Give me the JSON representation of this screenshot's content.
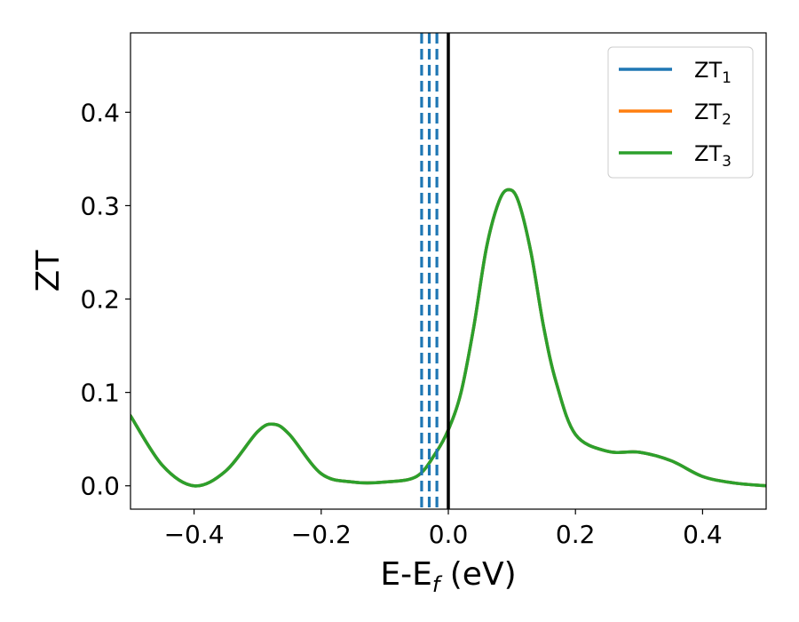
{
  "chart_data": {
    "type": "line",
    "xlabel": "E-E",
    "xlabel_sub": "f",
    "xlabel_unit": " (eV)",
    "ylabel": "ZT",
    "xlim": [
      -0.5,
      0.5
    ],
    "ylim": [
      -0.025,
      0.485
    ],
    "x_ticks": [
      -0.4,
      -0.2,
      0.0,
      0.2,
      0.4
    ],
    "x_tick_labels": [
      "−0.4",
      "−0.2",
      "0.0",
      "0.2",
      "0.4"
    ],
    "y_ticks": [
      0.0,
      0.1,
      0.2,
      0.3,
      0.4
    ],
    "y_tick_labels": [
      "0.0",
      "0.1",
      "0.2",
      "0.3",
      "0.4"
    ],
    "grid": false,
    "legend_position": "top-right",
    "series": [
      {
        "name": "ZT",
        "sub": "1",
        "color": "#1f77b4",
        "x": [
          -0.5,
          -0.45,
          -0.4,
          -0.35,
          -0.3,
          -0.275,
          -0.25,
          -0.2,
          -0.15,
          -0.1,
          -0.05,
          -0.02,
          0.0,
          0.02,
          0.04,
          0.06,
          0.08,
          0.095,
          0.11,
          0.13,
          0.15,
          0.17,
          0.2,
          0.25,
          0.3,
          0.35,
          0.4,
          0.45,
          0.5
        ],
        "y": [
          0.075,
          0.022,
          0.0,
          0.016,
          0.058,
          0.066,
          0.055,
          0.013,
          0.004,
          0.004,
          0.01,
          0.035,
          0.06,
          0.1,
          0.17,
          0.255,
          0.305,
          0.317,
          0.305,
          0.25,
          0.17,
          0.11,
          0.055,
          0.037,
          0.036,
          0.027,
          0.01,
          0.003,
          0.0
        ]
      },
      {
        "name": "ZT",
        "sub": "2",
        "color": "#ff7f0e",
        "x": [
          -0.5,
          -0.45,
          -0.4,
          -0.35,
          -0.3,
          -0.275,
          -0.25,
          -0.2,
          -0.15,
          -0.1,
          -0.05,
          -0.02,
          0.0,
          0.02,
          0.04,
          0.06,
          0.08,
          0.095,
          0.11,
          0.13,
          0.15,
          0.17,
          0.2,
          0.25,
          0.3,
          0.35,
          0.4,
          0.45,
          0.5
        ],
        "y": [
          0.075,
          0.022,
          0.0,
          0.016,
          0.058,
          0.066,
          0.055,
          0.013,
          0.004,
          0.004,
          0.01,
          0.035,
          0.06,
          0.1,
          0.17,
          0.255,
          0.305,
          0.317,
          0.305,
          0.25,
          0.17,
          0.11,
          0.055,
          0.037,
          0.036,
          0.027,
          0.01,
          0.003,
          0.0
        ]
      },
      {
        "name": "ZT",
        "sub": "3",
        "color": "#2ca02c",
        "x": [
          -0.5,
          -0.45,
          -0.4,
          -0.35,
          -0.3,
          -0.275,
          -0.25,
          -0.2,
          -0.15,
          -0.1,
          -0.05,
          -0.02,
          0.0,
          0.02,
          0.04,
          0.06,
          0.08,
          0.095,
          0.11,
          0.13,
          0.15,
          0.17,
          0.2,
          0.25,
          0.3,
          0.35,
          0.4,
          0.45,
          0.5
        ],
        "y": [
          0.075,
          0.022,
          0.0,
          0.016,
          0.058,
          0.066,
          0.055,
          0.013,
          0.004,
          0.004,
          0.01,
          0.035,
          0.06,
          0.1,
          0.17,
          0.255,
          0.305,
          0.317,
          0.305,
          0.25,
          0.17,
          0.11,
          0.055,
          0.037,
          0.036,
          0.027,
          0.01,
          0.003,
          0.0
        ]
      }
    ],
    "vertical_lines": [
      {
        "x": -0.042,
        "style": "dashed",
        "color": "#1f77b4"
      },
      {
        "x": -0.03,
        "style": "dashed",
        "color": "#1f77b4"
      },
      {
        "x": -0.018,
        "style": "dashed",
        "color": "#1f77b4"
      },
      {
        "x": 0.0,
        "style": "solid",
        "color": "#000000"
      }
    ]
  }
}
